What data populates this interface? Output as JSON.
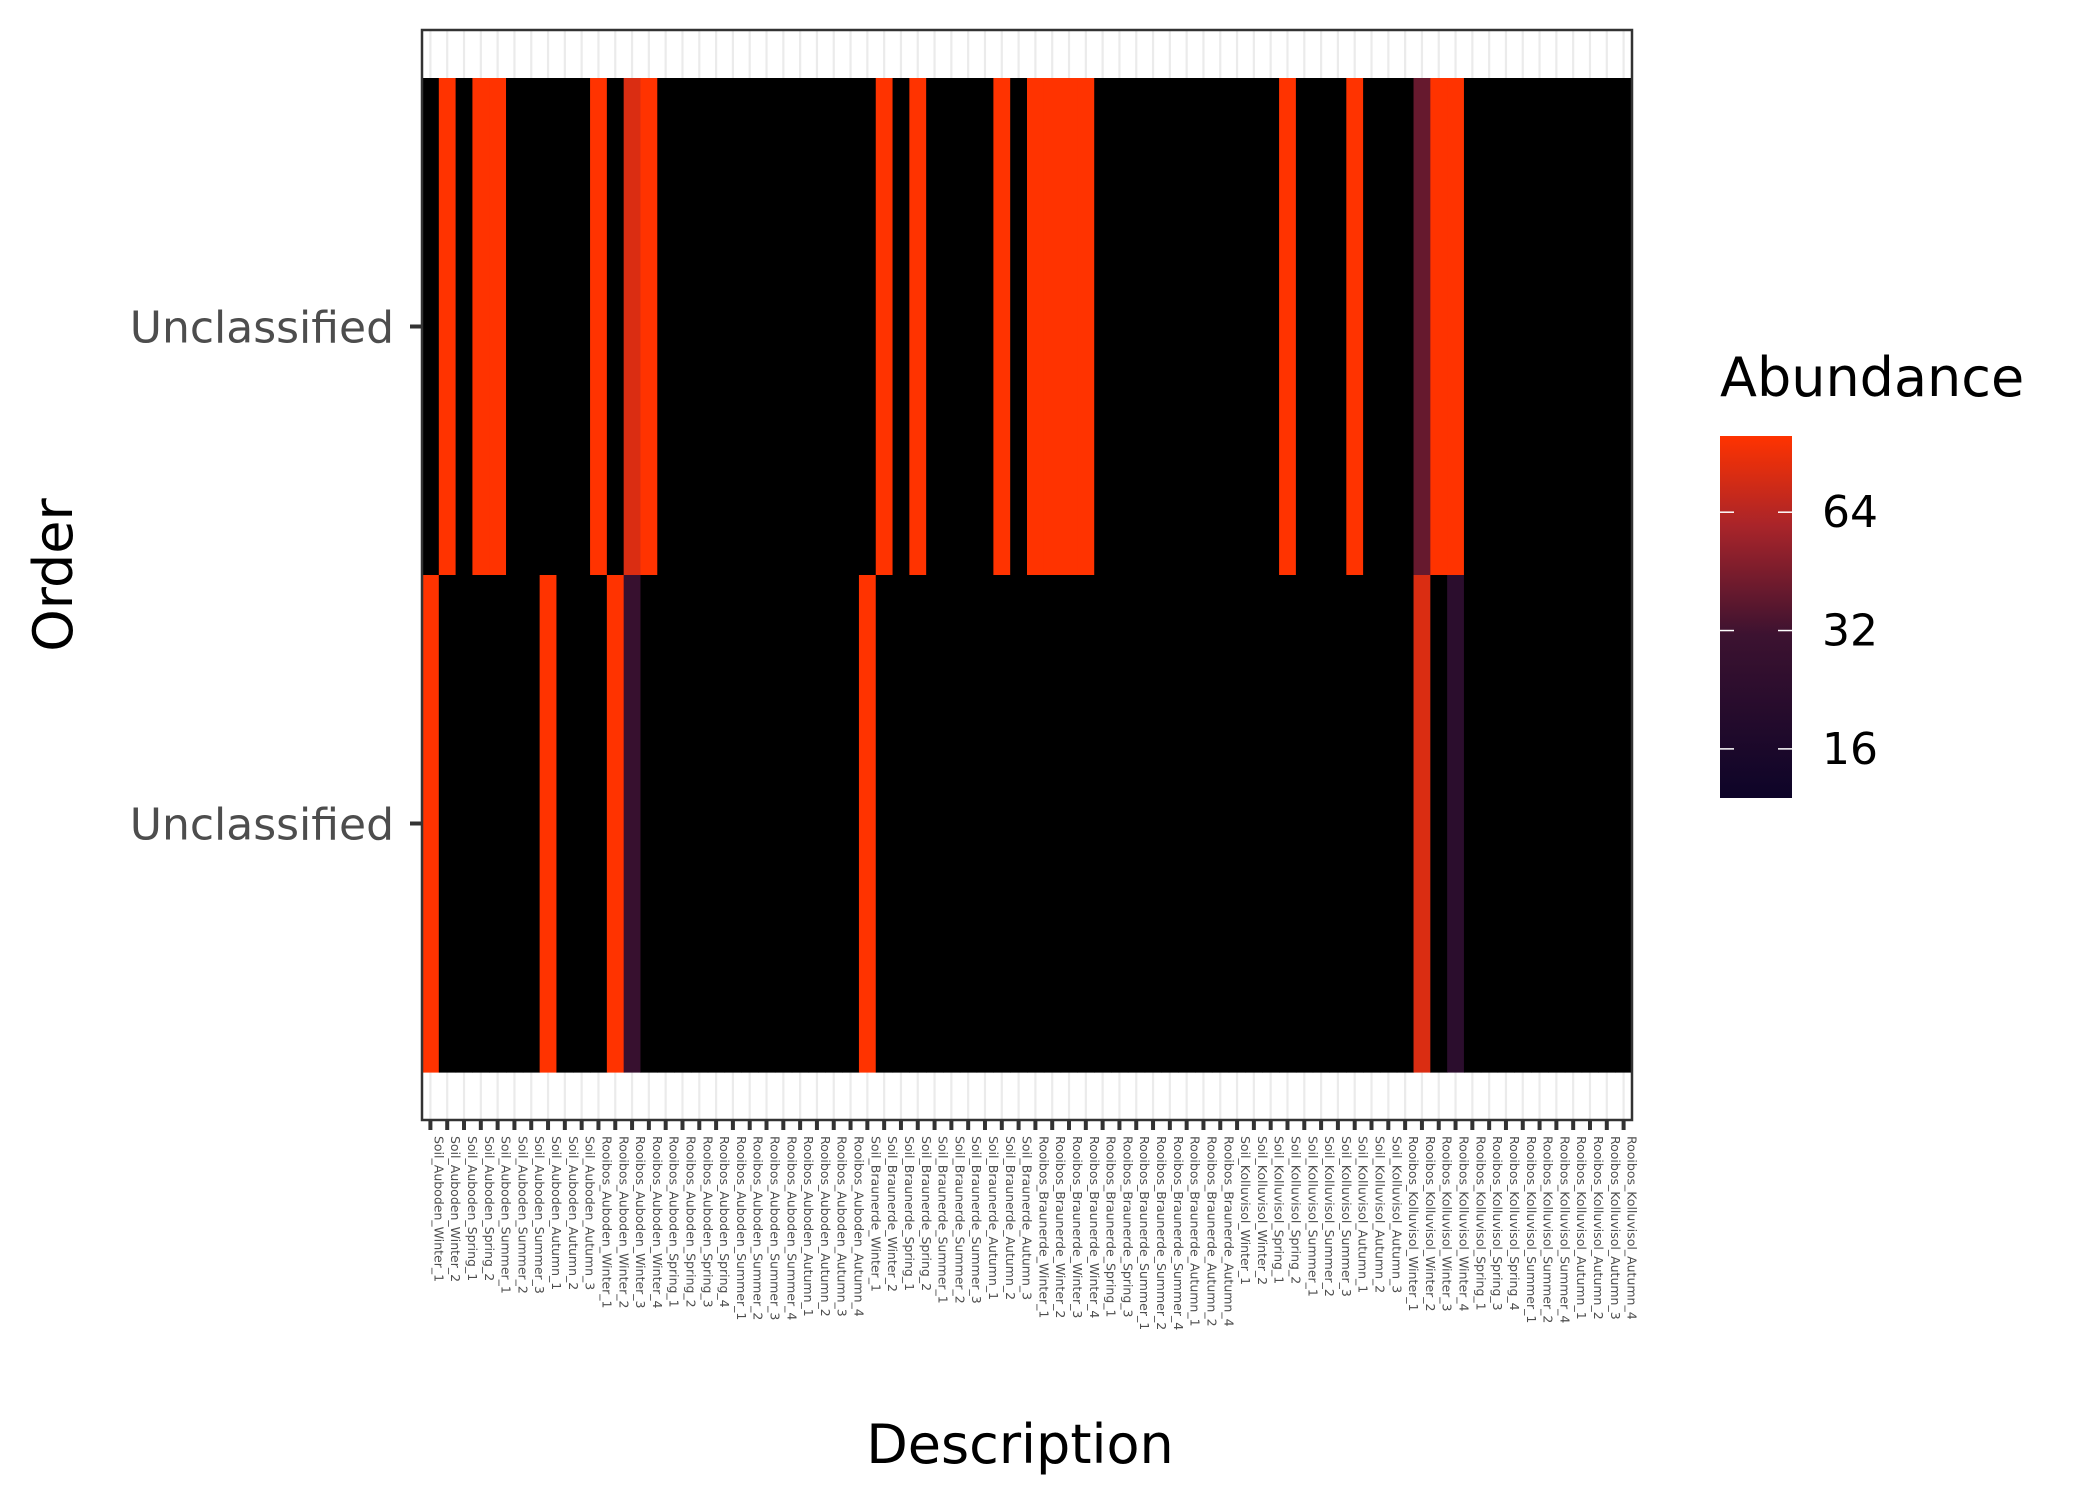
{
  "chart_data": {
    "type": "heatmap",
    "title": "",
    "xlabel": "Description",
    "ylabel": "Order",
    "legend": {
      "title": "Abundance",
      "position": "right",
      "scale": "log2",
      "ticks": [
        16,
        32,
        64
      ],
      "low_color": "#0d0428",
      "mid_color": "#6b1a2a",
      "high_color": "#ff3300",
      "zero_color": "#000000"
    },
    "rows": [
      "Unclassified",
      "Unclassified"
    ],
    "columns": [
      "Soil_Auboden_Winter_1",
      "Soil_Auboden_Winter_2",
      "Soil_Auboden_Spring_1",
      "Soil_Auboden_Spring_2",
      "Soil_Auboden_Summer_1",
      "Soil_Auboden_Summer_2",
      "Soil_Auboden_Summer_3",
      "Soil_Auboden_Autumn_1",
      "Soil_Auboden_Autumn_2",
      "Soil_Auboden_Autumn_3",
      "Rooibos_Auboden_Winter_1",
      "Rooibos_Auboden_Winter_2",
      "Rooibos_Auboden_Winter_3",
      "Rooibos_Auboden_Winter_4",
      "Rooibos_Auboden_Spring_1",
      "Rooibos_Auboden_Spring_2",
      "Rooibos_Auboden_Spring_3",
      "Rooibos_Auboden_Spring_4",
      "Rooibos_Auboden_Summer_1",
      "Rooibos_Auboden_Summer_2",
      "Rooibos_Auboden_Summer_3",
      "Rooibos_Auboden_Summer_4",
      "Rooibos_Auboden_Autumn_1",
      "Rooibos_Auboden_Autumn_2",
      "Rooibos_Auboden_Autumn_3",
      "Rooibos_Auboden_Autumn_4",
      "Soil_Braunerde_Winter_1",
      "Soil_Braunerde_Winter_2",
      "Soil_Braunerde_Spring_1",
      "Soil_Braunerde_Spring_2",
      "Soil_Braunerde_Summer_1",
      "Soil_Braunerde_Summer_2",
      "Soil_Braunerde_Summer_3",
      "Soil_Braunerde_Autumn_1",
      "Soil_Braunerde_Autumn_2",
      "Soil_Braunerde_Autumn_3",
      "Rooibos_Braunerde_Winter_1",
      "Rooibos_Braunerde_Winter_2",
      "Rooibos_Braunerde_Winter_3",
      "Rooibos_Braunerde_Winter_4",
      "Rooibos_Braunerde_Spring_1",
      "Rooibos_Braunerde_Spring_3",
      "Rooibos_Braunerde_Summer_1",
      "Rooibos_Braunerde_Summer_2",
      "Rooibos_Braunerde_Summer_4",
      "Rooibos_Braunerde_Autumn_1",
      "Rooibos_Braunerde_Autumn_2",
      "Rooibos_Braunerde_Autumn_4",
      "Soil_Kolluvisol_Winter_1",
      "Soil_Kolluvisol_Winter_2",
      "Soil_Kolluvisol_Spring_1",
      "Soil_Kolluvisol_Spring_2",
      "Soil_Kolluvisol_Summer_1",
      "Soil_Kolluvisol_Summer_2",
      "Soil_Kolluvisol_Summer_3",
      "Soil_Kolluvisol_Autumn_1",
      "Soil_Kolluvisol_Autumn_2",
      "Soil_Kolluvisol_Autumn_3",
      "Rooibos_Kolluvisol_Winter_1",
      "Rooibos_Kolluvisol_Winter_2",
      "Rooibos_Kolluvisol_Winter_3",
      "Rooibos_Kolluvisol_Winter_4",
      "Rooibos_Kolluvisol_Spring_1",
      "Rooibos_Kolluvisol_Spring_3",
      "Rooibos_Kolluvisol_Spring_4",
      "Rooibos_Kolluvisol_Summer_1",
      "Rooibos_Kolluvisol_Summer_2",
      "Rooibos_Kolluvisol_Summer_4",
      "Rooibos_Kolluvisol_Autumn_1",
      "Rooibos_Kolluvisol_Autumn_2",
      "Rooibos_Kolluvisol_Autumn_3",
      "Rooibos_Kolluvisol_Autumn_4"
    ],
    "values": [
      [
        0,
        100,
        0,
        100,
        100,
        0,
        0,
        0,
        0,
        0,
        100,
        0,
        80,
        100,
        0,
        0,
        0,
        0,
        0,
        0,
        0,
        0,
        0,
        0,
        0,
        0,
        0,
        100,
        0,
        100,
        0,
        0,
        0,
        0,
        100,
        0,
        100,
        100,
        100,
        100,
        0,
        0,
        0,
        0,
        0,
        0,
        0,
        0,
        0,
        0,
        0,
        100,
        0,
        0,
        0,
        100,
        0,
        0,
        0,
        40,
        100,
        100,
        0,
        0,
        0,
        0,
        0,
        0,
        0,
        0,
        0,
        0
      ],
      [
        100,
        0,
        0,
        0,
        0,
        0,
        0,
        100,
        0,
        0,
        0,
        100,
        28,
        0,
        0,
        0,
        0,
        0,
        0,
        0,
        0,
        0,
        0,
        0,
        0,
        0,
        100,
        0,
        0,
        0,
        0,
        0,
        0,
        0,
        0,
        0,
        0,
        0,
        0,
        0,
        0,
        0,
        0,
        0,
        0,
        0,
        0,
        0,
        0,
        0,
        0,
        0,
        0,
        0,
        0,
        0,
        0,
        0,
        0,
        80,
        0,
        22,
        0,
        0,
        0,
        0,
        0,
        0,
        0,
        0,
        0,
        0
      ]
    ]
  }
}
